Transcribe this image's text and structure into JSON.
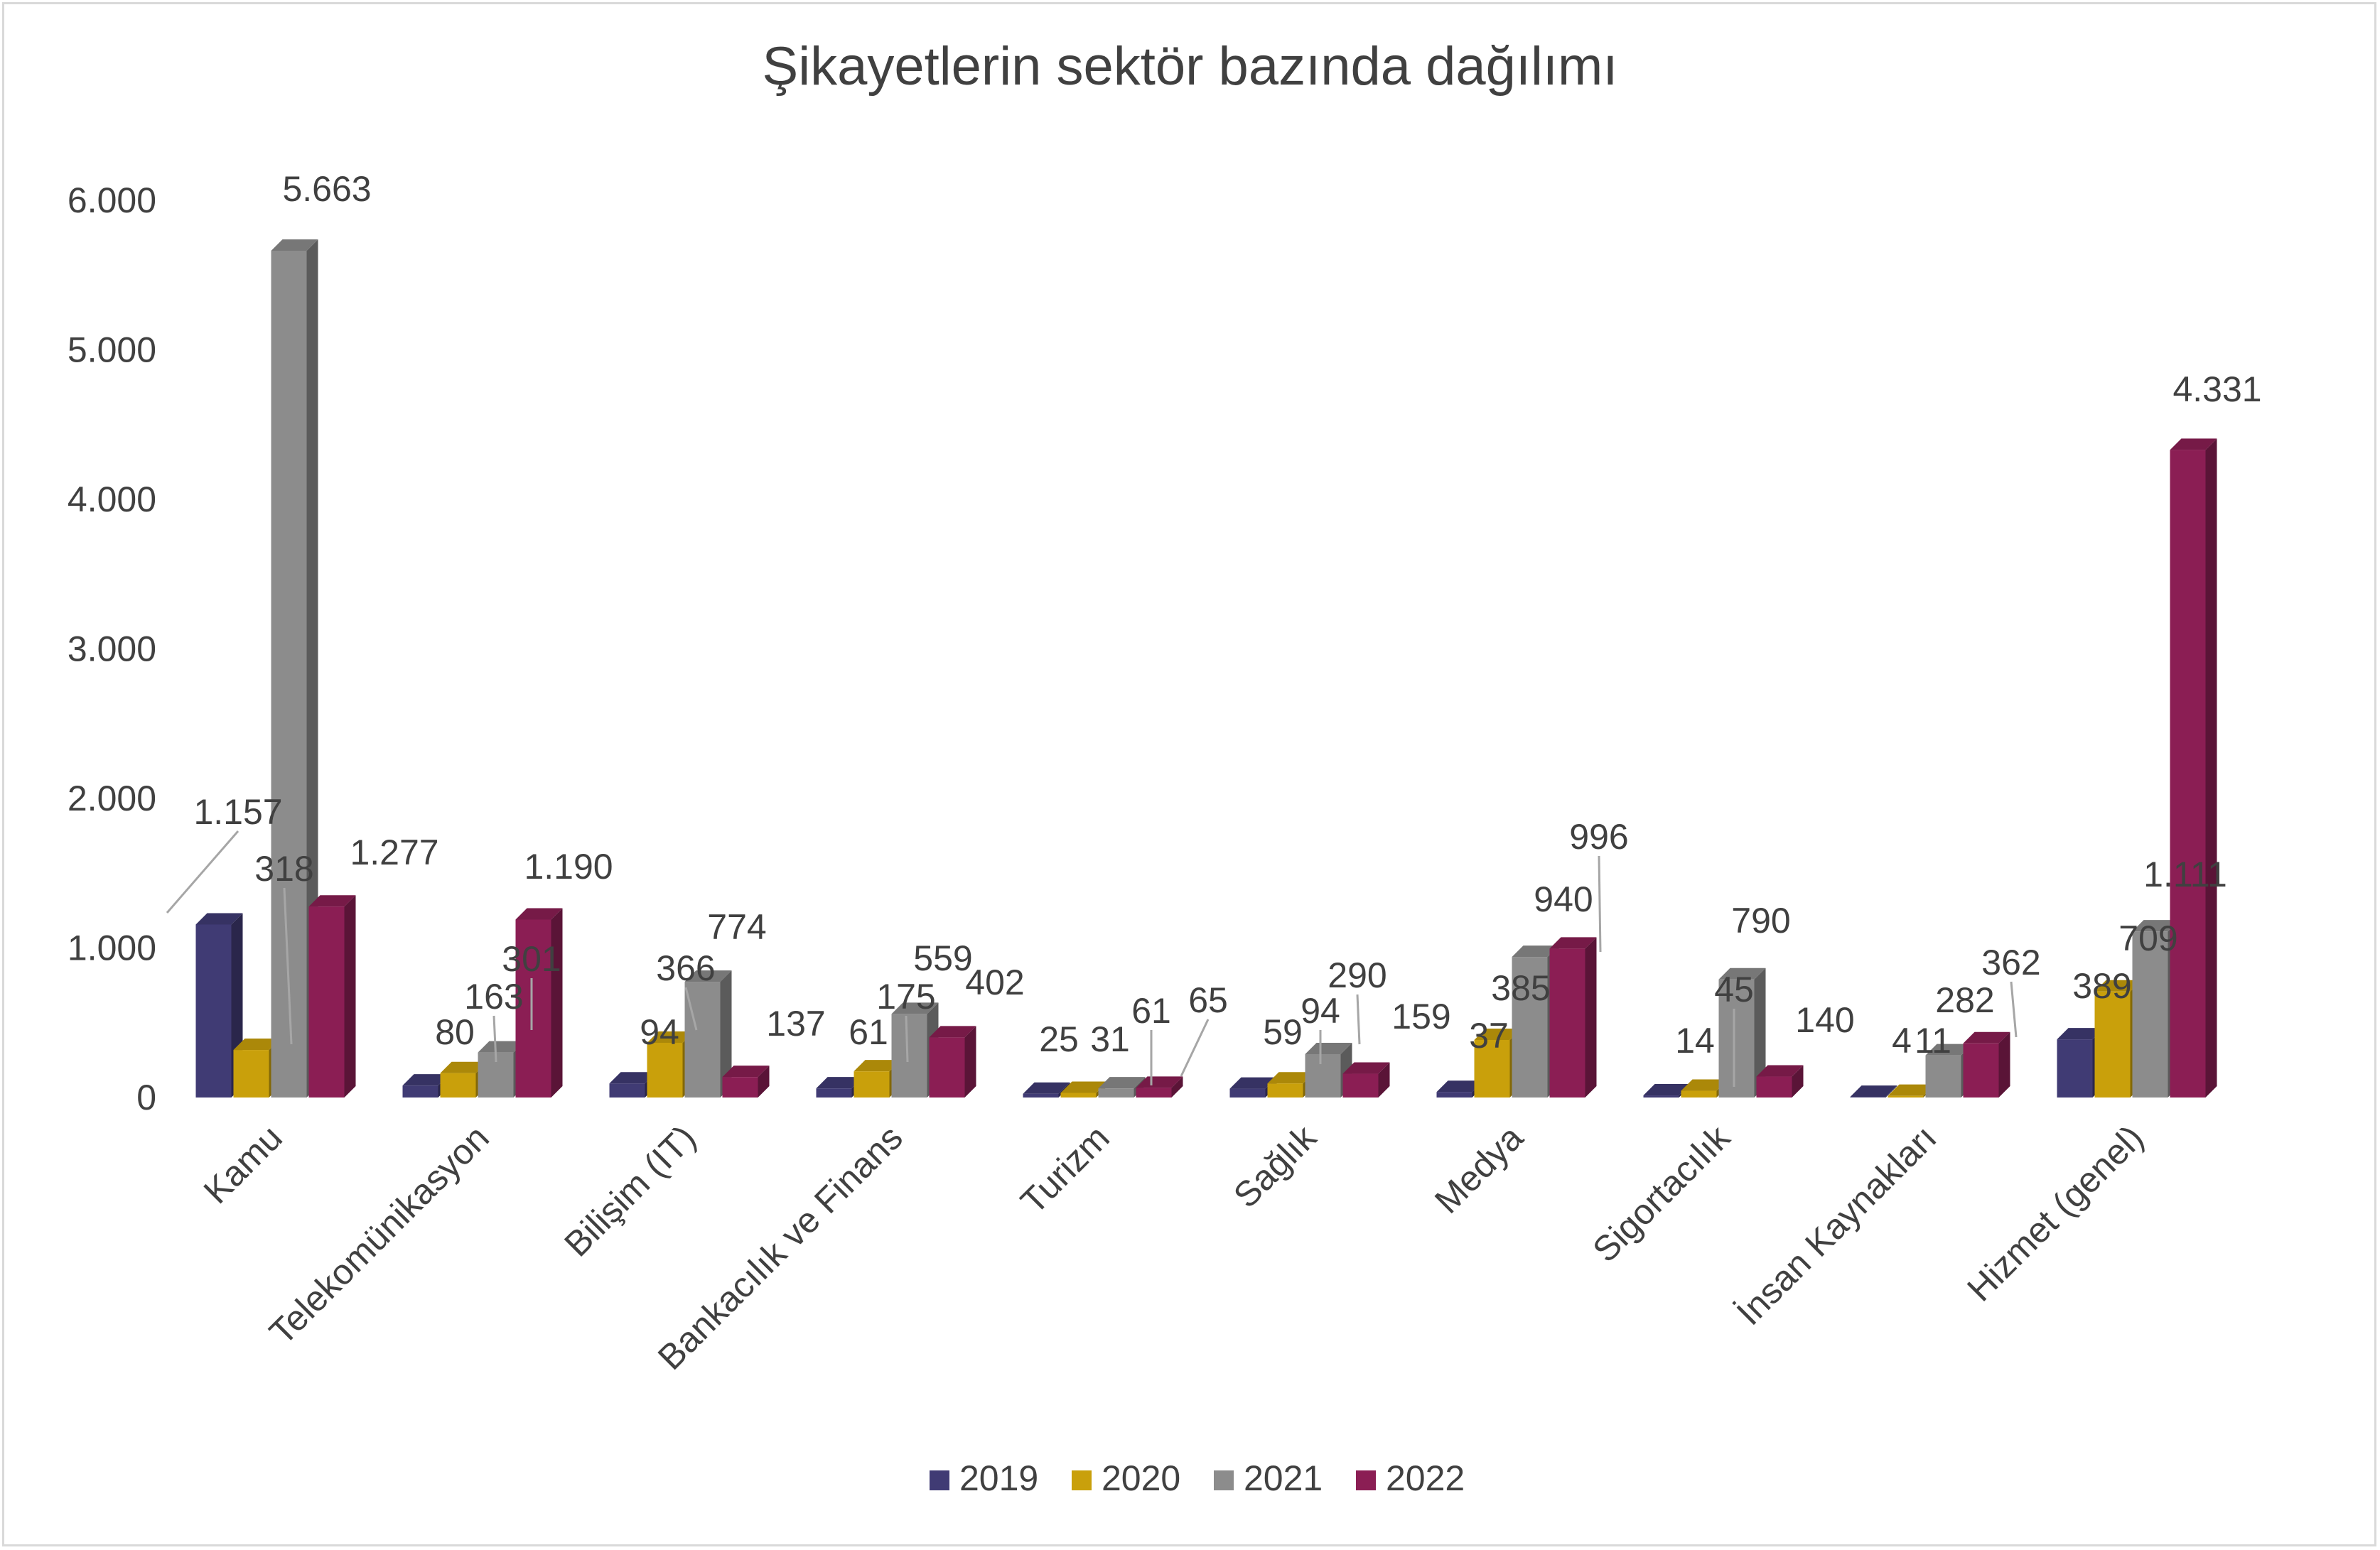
{
  "chart_data": {
    "type": "bar",
    "title": "Şikayetlerin sektör bazında dağılımı",
    "xlabel": "",
    "ylabel": "",
    "ylim": [
      0,
      6000
    ],
    "yticks": [
      "0",
      "1.000",
      "2.000",
      "3.000",
      "4.000",
      "5.000",
      "6.000"
    ],
    "categories": [
      "Kamu",
      "Telekomünikasyon",
      "Bilişim (IT)",
      "Bankacılık ve Finans",
      "Turizm",
      "Sağlık",
      "Medya",
      "Sigortacılık",
      "İnsan Kaynakları",
      "Hizmet (genel)"
    ],
    "series": [
      {
        "name": "2019",
        "color": "#403b74",
        "values": [
          1157,
          80,
          94,
          61,
          25,
          59,
          37,
          14,
          4,
          389
        ],
        "labels": [
          "1.157",
          "80",
          "94",
          "61",
          "25",
          "59",
          "37",
          "14",
          "4",
          "389"
        ]
      },
      {
        "name": "2020",
        "color": "#c9a00b",
        "values": [
          318,
          163,
          366,
          175,
          31,
          94,
          385,
          45,
          11,
          709
        ],
        "labels": [
          "318",
          "163",
          "366",
          "175",
          "31",
          "94",
          "385",
          "45",
          "11",
          "709"
        ]
      },
      {
        "name": "2021",
        "color": "#8c8c8c",
        "values": [
          5663,
          301,
          774,
          559,
          61,
          290,
          940,
          790,
          282,
          1111
        ],
        "labels": [
          "5.663",
          "301",
          "774",
          "559",
          "61",
          "290",
          "940",
          "790",
          "282",
          "1.111"
        ]
      },
      {
        "name": "2022",
        "color": "#8b1e54",
        "values": [
          1277,
          1190,
          137,
          402,
          65,
          159,
          996,
          140,
          362,
          4331
        ],
        "labels": [
          "1.277",
          "1.190",
          "137",
          "402",
          "65",
          "159",
          "996",
          "140",
          "362",
          "4.331"
        ]
      }
    ],
    "legend": "bottom",
    "grid": false
  }
}
